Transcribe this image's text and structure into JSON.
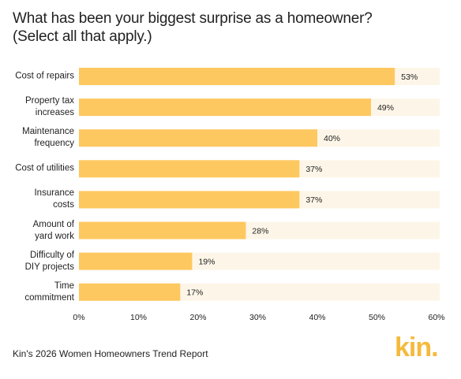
{
  "chart_data": {
    "type": "bar",
    "orientation": "horizontal",
    "title": "What has been your biggest surprise as a homeowner?\n(Select all that apply.)",
    "categories": [
      "Cost of repairs",
      "Property tax\nincreases",
      "Maintenance\nfrequency",
      "Cost of utilities",
      "Insurance\ncosts",
      "Amount of\nyard work",
      "Difficulty of\nDIY projects",
      "Time\ncommitment"
    ],
    "values": [
      53,
      49,
      40,
      37,
      37,
      28,
      19,
      17
    ],
    "value_labels": [
      "53%",
      "49%",
      "40%",
      "37%",
      "37%",
      "28%",
      "19%",
      "17%"
    ],
    "color": "#fec860",
    "track_color": "#fdf6e8",
    "xlim": [
      0,
      60
    ],
    "xticks": [
      {
        "value": 0,
        "label": "0%"
      },
      {
        "value": 10,
        "label": "10%"
      },
      {
        "value": 20,
        "label": "20%"
      },
      {
        "value": 30,
        "label": "30%"
      },
      {
        "value": 40,
        "label": "40%"
      },
      {
        "value": 50,
        "label": "50%"
      },
      {
        "value": 60,
        "label": "60%"
      }
    ],
    "source": "Kin's 2026 Women Homeowners Trend Report",
    "logo": "kin."
  }
}
